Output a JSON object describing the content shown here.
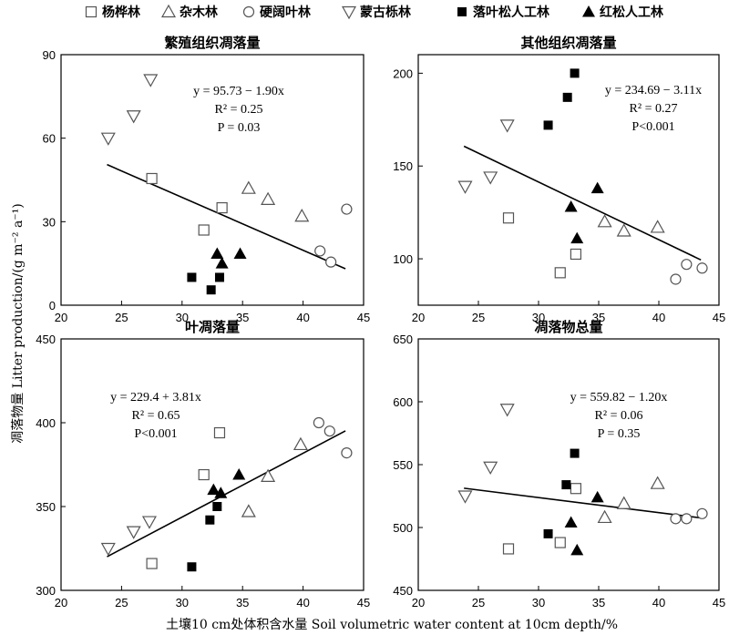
{
  "legend": [
    {
      "name": "杨桦林",
      "marker": "open-square"
    },
    {
      "name": "杂木林",
      "marker": "open-triangle-up"
    },
    {
      "name": "硬阔叶林",
      "marker": "open-circle"
    },
    {
      "name": "蒙古栎林",
      "marker": "open-triangle-down"
    },
    {
      "name": "落叶松人工林",
      "marker": "filled-square"
    },
    {
      "name": "红松人工林",
      "marker": "filled-triangle-up"
    }
  ],
  "y_axis_title": "凋落物量 Litter production/(g m⁻² a⁻¹)",
  "x_axis_title": "土壤10 cm处体积含水量 Soil volumetric water content at 10cm depth/%",
  "colors": {
    "open_marker": "#ffffff",
    "marker_stroke": "#555555",
    "filled_marker": "#000000",
    "grey_marker": "#555555"
  },
  "chart_data": [
    {
      "type": "scatter",
      "title": "繁殖组织凋落量",
      "xlim": [
        20,
        45
      ],
      "ylim": [
        0,
        90
      ],
      "xticks": [
        20,
        25,
        30,
        35,
        40,
        45
      ],
      "yticks": [
        0,
        30,
        60,
        90
      ],
      "equation": {
        "line1": "y = 95.73 − 1.90x",
        "r2": "R² = 0.25",
        "p": "P = 0.03"
      },
      "fit": {
        "x_range": [
          23.8,
          43.5
        ],
        "intercept": 95.73,
        "slope": -1.9
      },
      "series": [
        {
          "name": "杨桦林",
          "marker": "open-square",
          "points": [
            [
              27.5,
              45.5
            ],
            [
              31.8,
              27
            ],
            [
              33.3,
              35
            ]
          ]
        },
        {
          "name": "杂木林",
          "marker": "open-triangle-up",
          "points": [
            [
              35.5,
              42
            ],
            [
              37.1,
              38
            ],
            [
              39.9,
              32
            ]
          ]
        },
        {
          "name": "硬阔叶林",
          "marker": "open-circle",
          "points": [
            [
              41.4,
              19.5
            ],
            [
              42.3,
              15.5
            ],
            [
              43.6,
              34.5
            ]
          ]
        },
        {
          "name": "蒙古栎林",
          "marker": "open-triangle-down",
          "points": [
            [
              23.9,
              60
            ],
            [
              26.0,
              68
            ],
            [
              27.4,
              81
            ]
          ]
        },
        {
          "name": "落叶松人工林",
          "marker": "filled-square",
          "points": [
            [
              30.8,
              10
            ],
            [
              32.4,
              5.5
            ],
            [
              33.1,
              10
            ]
          ]
        },
        {
          "name": "红松人工林",
          "marker": "filled-triangle-up",
          "points": [
            [
              32.9,
              18.5
            ],
            [
              33.3,
              15
            ],
            [
              34.8,
              18.5
            ]
          ]
        }
      ]
    },
    {
      "type": "scatter",
      "title": "其他组织凋落量",
      "xlim": [
        20,
        45
      ],
      "ylim": [
        75,
        210
      ],
      "xticks": [
        20,
        25,
        30,
        35,
        40,
        45
      ],
      "yticks": [
        100,
        150,
        200
      ],
      "equation": {
        "line1": "y = 234.69 − 3.11x",
        "r2": "R² = 0.27",
        "p": "P<0.001"
      },
      "fit": {
        "x_range": [
          23.8,
          43.5
        ],
        "intercept": 234.69,
        "slope": -3.11
      },
      "series": [
        {
          "name": "杨桦林",
          "marker": "open-square",
          "points": [
            [
              27.5,
              122
            ],
            [
              31.8,
              92.5
            ],
            [
              33.1,
              102.5
            ]
          ]
        },
        {
          "name": "杂木林",
          "marker": "open-triangle-up",
          "points": [
            [
              35.5,
              120
            ],
            [
              37.1,
              115
            ],
            [
              39.9,
              117
            ]
          ]
        },
        {
          "name": "硬阔叶林",
          "marker": "open-circle",
          "points": [
            [
              41.4,
              89
            ],
            [
              42.3,
              97
            ],
            [
              43.6,
              95
            ]
          ]
        },
        {
          "name": "蒙古栎林",
          "marker": "open-triangle-down",
          "points": [
            [
              23.9,
              139
            ],
            [
              26.0,
              144
            ],
            [
              27.4,
              172
            ]
          ]
        },
        {
          "name": "落叶松人工林",
          "marker": "filled-square",
          "points": [
            [
              30.8,
              172
            ],
            [
              32.4,
              187
            ],
            [
              33.0,
              200
            ]
          ]
        },
        {
          "name": "红松人工林",
          "marker": "filled-triangle-up",
          "points": [
            [
              32.7,
              128
            ],
            [
              33.2,
              111
            ],
            [
              34.9,
              138
            ]
          ]
        }
      ]
    },
    {
      "type": "scatter",
      "title": "叶凋落量",
      "xlim": [
        20,
        45
      ],
      "ylim": [
        300,
        450
      ],
      "xticks": [
        20,
        25,
        30,
        35,
        40,
        45
      ],
      "yticks": [
        300,
        350,
        400,
        450
      ],
      "equation": {
        "line1": "y = 229.4 + 3.81x",
        "r2": "R² = 0.65",
        "p": "P<0.001"
      },
      "fit": {
        "x_range": [
          23.8,
          43.5
        ],
        "intercept": 229.4,
        "slope": 3.81
      },
      "series": [
        {
          "name": "杨桦林",
          "marker": "open-square",
          "points": [
            [
              27.5,
              316
            ],
            [
              31.8,
              369
            ],
            [
              33.1,
              394
            ]
          ]
        },
        {
          "name": "杂木林",
          "marker": "open-triangle-up",
          "points": [
            [
              35.5,
              347
            ],
            [
              37.1,
              368
            ],
            [
              39.8,
              387
            ]
          ]
        },
        {
          "name": "硬阔叶林",
          "marker": "open-circle",
          "points": [
            [
              41.3,
              400
            ],
            [
              42.2,
              395
            ],
            [
              43.6,
              382
            ]
          ]
        },
        {
          "name": "蒙古栎林",
          "marker": "open-triangle-down",
          "points": [
            [
              23.9,
              325
            ],
            [
              26.0,
              335
            ],
            [
              27.3,
              341
            ]
          ]
        },
        {
          "name": "落叶松人工林",
          "marker": "filled-square",
          "points": [
            [
              30.8,
              314
            ],
            [
              32.3,
              342
            ],
            [
              32.9,
              350
            ]
          ]
        },
        {
          "name": "红松人工林",
          "marker": "filled-triangle-up",
          "points": [
            [
              32.6,
              360
            ],
            [
              33.2,
              358
            ],
            [
              34.7,
              369
            ]
          ]
        }
      ]
    },
    {
      "type": "scatter",
      "title": "凋落物总量",
      "xlim": [
        20,
        45
      ],
      "ylim": [
        450,
        650
      ],
      "xticks": [
        20,
        25,
        30,
        35,
        40,
        45
      ],
      "yticks": [
        450,
        500,
        550,
        600,
        650
      ],
      "equation": {
        "line1": "y = 559.82 − 1.20x",
        "r2": "R² = 0.06",
        "p": "P = 0.35"
      },
      "fit": {
        "x_range": [
          23.8,
          43.5
        ],
        "intercept": 559.82,
        "slope": -1.2
      },
      "series": [
        {
          "name": "杨桦林",
          "marker": "open-square",
          "points": [
            [
              27.5,
              483
            ],
            [
              31.8,
              488
            ],
            [
              33.1,
              531
            ]
          ]
        },
        {
          "name": "杂木林",
          "marker": "open-triangle-up",
          "points": [
            [
              35.5,
              508
            ],
            [
              37.1,
              519
            ],
            [
              39.9,
              535
            ]
          ]
        },
        {
          "name": "硬阔叶林",
          "marker": "open-circle",
          "points": [
            [
              41.4,
              507
            ],
            [
              42.3,
              507
            ],
            [
              43.6,
              511
            ]
          ]
        },
        {
          "name": "蒙古栎林",
          "marker": "open-triangle-down",
          "points": [
            [
              23.9,
              525
            ],
            [
              26.0,
              548
            ],
            [
              27.4,
              594
            ]
          ]
        },
        {
          "name": "落叶松人工林",
          "marker": "filled-square",
          "points": [
            [
              30.8,
              495
            ],
            [
              32.3,
              534
            ],
            [
              33.0,
              559
            ]
          ]
        },
        {
          "name": "红松人工林",
          "marker": "filled-triangle-up",
          "points": [
            [
              32.7,
              504
            ],
            [
              33.2,
              482
            ],
            [
              34.9,
              524
            ]
          ]
        }
      ]
    }
  ]
}
